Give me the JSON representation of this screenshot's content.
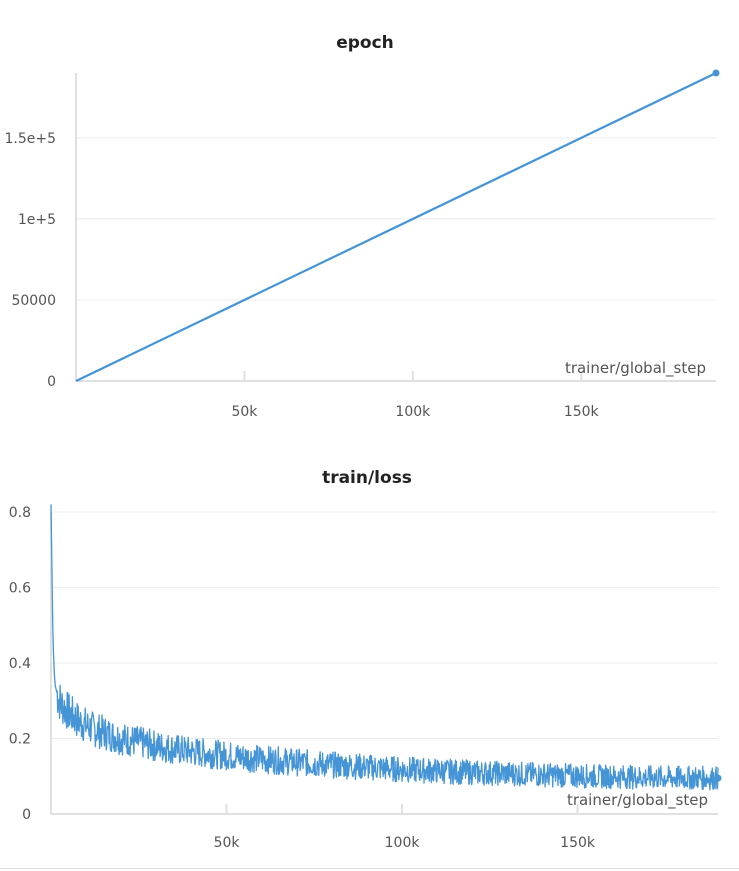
{
  "colors": {
    "series": "#4594d6",
    "grid": "#ececec",
    "axis": "#e0e0e0",
    "text": "#555555"
  },
  "chart_data": [
    {
      "type": "line",
      "title": "epoch",
      "xlabel": "trainer/global_step",
      "ylabel": "",
      "xlim": [
        0,
        190000
      ],
      "ylim": [
        0,
        190000
      ],
      "xticks": [
        50000,
        100000,
        150000
      ],
      "xtick_labels": [
        "50k",
        "100k",
        "150k"
      ],
      "yticks": [
        0,
        50000,
        100000,
        150000
      ],
      "ytick_labels": [
        "0",
        "50000",
        "1e+5",
        "1.5e+5"
      ],
      "grid": true,
      "series": [
        {
          "x": [
            0,
            190000
          ],
          "y": [
            0,
            190000
          ],
          "end_marker": true
        }
      ]
    },
    {
      "type": "line",
      "title": "train/loss",
      "xlabel": "trainer/global_step",
      "ylabel": "",
      "xlim": [
        0,
        190000
      ],
      "ylim": [
        0,
        0.8
      ],
      "xticks": [
        50000,
        100000,
        150000
      ],
      "xtick_labels": [
        "50k",
        "100k",
        "150k"
      ],
      "yticks": [
        0,
        0.2,
        0.4,
        0.6,
        0.8
      ],
      "ytick_labels": [
        "0",
        "0.2",
        "0.4",
        "0.6",
        "0.8"
      ],
      "grid": true,
      "noisy": true,
      "series": [
        {
          "x": [
            0,
            300,
            600,
            900,
            1200,
            2000,
            3000,
            5000,
            8000,
            12000,
            20000,
            30000,
            40000,
            50000,
            60000,
            70000,
            80000,
            90000,
            100000,
            110000,
            120000,
            130000,
            140000,
            150000,
            160000,
            170000,
            180000,
            190000
          ],
          "y": [
            0.82,
            0.62,
            0.45,
            0.38,
            0.34,
            0.31,
            0.29,
            0.27,
            0.245,
            0.225,
            0.2,
            0.18,
            0.165,
            0.155,
            0.145,
            0.137,
            0.13,
            0.124,
            0.118,
            0.114,
            0.11,
            0.107,
            0.104,
            0.101,
            0.099,
            0.097,
            0.096,
            0.095
          ],
          "end_marker": true
        }
      ]
    }
  ]
}
